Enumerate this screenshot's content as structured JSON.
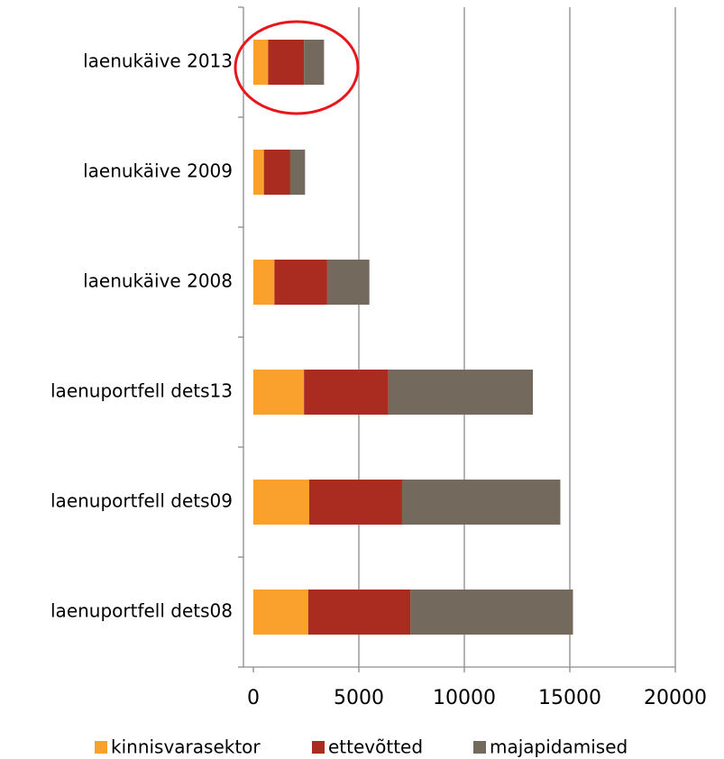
{
  "chart_data": {
    "type": "stacked_barh",
    "categories": [
      "laenukäive 2013",
      "laenukäive 2009",
      "laenukäive 2008",
      "laenuportfell dets13",
      "laenuportfell dets09",
      "laenuportfell dets08"
    ],
    "series": [
      {
        "name": "kinnisvarasektor",
        "color": "#f9a12c",
        "values": [
          700,
          500,
          1000,
          2400,
          2650,
          2600
        ]
      },
      {
        "name": "ettevõtted",
        "color": "#aa2b1f",
        "values": [
          1700,
          1250,
          2500,
          4000,
          4400,
          4850
        ]
      },
      {
        "name": "majapidamised",
        "color": "#736a5d",
        "values": [
          950,
          700,
          2000,
          6850,
          7500,
          7700
        ]
      }
    ],
    "xlim": [
      0,
      20000
    ],
    "xticks": [
      0,
      5000,
      10000,
      15000,
      20000
    ],
    "grid": true,
    "legend": "bottom"
  }
}
